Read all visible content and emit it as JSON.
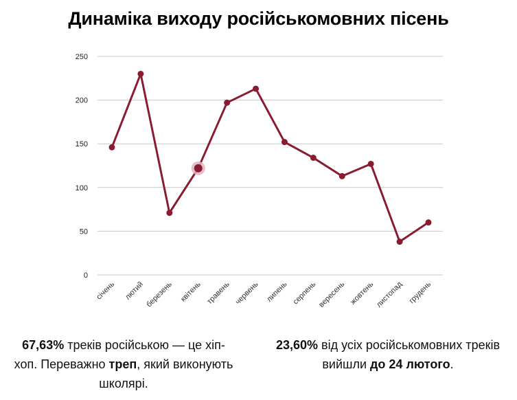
{
  "title": "Динаміка виходу російськомовних пісень",
  "chart_data": {
    "type": "line",
    "title": "Динаміка виходу російськомовних пісень",
    "xlabel": "",
    "ylabel": "",
    "categories": [
      "січень",
      "лютий",
      "березень",
      "квітень",
      "травень",
      "червень",
      "липень",
      "серпень",
      "вересень",
      "жовтень",
      "листопад",
      "грудень"
    ],
    "series": [
      {
        "values": [
          146,
          230,
          71,
          122,
          197,
          213,
          152,
          134,
          113,
          127,
          38,
          60
        ]
      }
    ],
    "ylim": [
      0,
      250
    ],
    "yticks": [
      0,
      50,
      100,
      150,
      200,
      250
    ],
    "grid": true,
    "highlighted_category": "квітень",
    "colors": {
      "line": "#8a1c32",
      "grid": "#c8c8c8",
      "highlight_halo": "#e0b3bf"
    }
  },
  "stats": {
    "left": {
      "p1_bold": "67,63%",
      "p2": " треків російською — це хіп-хоп. Переважно ",
      "p3_bold": "треп",
      "p4": ", який виконують школярі."
    },
    "right": {
      "p1_bold": "23,60%",
      "p2": " від усіх російськомовних треків вийшли ",
      "p3_bold": "до 24 лютого",
      "p4": "."
    }
  }
}
